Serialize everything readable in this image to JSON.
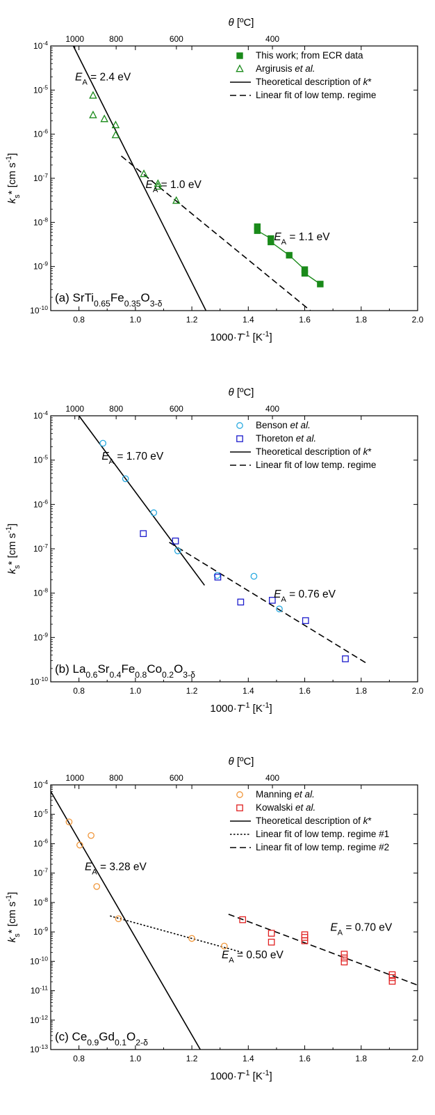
{
  "chart_data": [
    {
      "type": "scatter",
      "panel_label": "(a)",
      "material": {
        "parts": [
          [
            "SrTi",
            ""
          ],
          [
            "0.65",
            "sub"
          ],
          [
            "Fe",
            ""
          ],
          [
            "0.35",
            "sub"
          ],
          [
            "O",
            ""
          ],
          [
            "3-δ",
            "sub"
          ]
        ]
      },
      "xlabel_bottom": "1000·T⁻¹ [K⁻¹]",
      "xlabel_top": "θ [ºC]",
      "ylabel": "ks* [cm s⁻¹]",
      "xlim": [
        0.7,
        2.0
      ],
      "ylim_log10": [
        -10,
        -4
      ],
      "xticks": [
        0.8,
        1.0,
        1.2,
        1.4,
        1.6,
        1.8,
        2.0
      ],
      "xtick_labels": [
        "0.8",
        "1.0",
        "1.2",
        "1.4",
        "1.6",
        "1.8",
        "2.0"
      ],
      "top_ticks": [
        {
          "celsius": 1000,
          "label": "1000"
        },
        {
          "celsius": 800,
          "label": "800"
        },
        {
          "celsius": 600,
          "label": "600"
        },
        {
          "celsius": 400,
          "label": "400"
        }
      ],
      "legend_position": "top-right",
      "series": [
        {
          "name": "This work; from ECR data",
          "marker": "filled-square",
          "color": "#1a8a1a",
          "connect": true,
          "x": [
            1.432,
            1.432,
            1.48,
            1.48,
            1.545,
            1.6,
            1.6,
            1.655
          ],
          "y": [
            8e-09,
            6.5e-09,
            4.3e-09,
            3.6e-09,
            1.8e-09,
            8.5e-10,
            7e-10,
            4e-10
          ]
        },
        {
          "name": "Argirusis et al.",
          "name_parts": [
            [
              "Argirusis ",
              ""
            ],
            [
              "et al.",
              "i"
            ]
          ],
          "marker": "open-triangle",
          "color": "#1a8a1a",
          "x": [
            0.85,
            0.85,
            0.89,
            0.93,
            0.93,
            1.03,
            1.08,
            1.08,
            1.145
          ],
          "y": [
            7.5e-06,
            2.7e-06,
            2.2e-06,
            1.6e-06,
            9.5e-07,
            1.25e-07,
            7.5e-08,
            6.5e-08,
            3.1e-08
          ]
        }
      ],
      "lines": [
        {
          "name": "Theoretical description of k*",
          "style": "solid",
          "points": [
            [
              0.78,
              0.0001
            ],
            [
              1.25,
              1e-10
            ]
          ]
        },
        {
          "name": "Linear fit of low temp. regime",
          "style": "dashed",
          "points": [
            [
              0.95,
              3.2e-07
            ],
            [
              1.62,
              1e-10
            ]
          ]
        }
      ],
      "annotations": [
        {
          "text": "= 2.4 eV",
          "label": "E",
          "sub": "A",
          "x": 0.885,
          "y": 1.65e-05
        },
        {
          "text": "= 1.0 eV",
          "label": "E",
          "sub": "A",
          "x": 1.135,
          "y": 6e-08
        },
        {
          "text": "= 1.1 eV",
          "label": "E",
          "sub": "A",
          "x": 1.59,
          "y": 3.9e-09
        }
      ]
    },
    {
      "type": "scatter",
      "panel_label": "(b)",
      "material": {
        "parts": [
          [
            "La",
            ""
          ],
          [
            "0.6",
            "sub"
          ],
          [
            "Sr",
            ""
          ],
          [
            "0.4",
            "sub"
          ],
          [
            "Fe",
            ""
          ],
          [
            "0.8",
            "sub"
          ],
          [
            "Co",
            ""
          ],
          [
            "0.2",
            "sub"
          ],
          [
            "O",
            ""
          ],
          [
            "3-δ",
            "sub"
          ]
        ]
      },
      "xlabel_bottom": "1000·T⁻¹ [K⁻¹]",
      "xlabel_top": "θ [ºC]",
      "ylabel": "ks* [cm s⁻¹]",
      "xlim": [
        0.7,
        2.0
      ],
      "ylim_log10": [
        -10,
        -4
      ],
      "xticks": [
        0.8,
        1.0,
        1.2,
        1.4,
        1.6,
        1.8,
        2.0
      ],
      "xtick_labels": [
        "0.8",
        "1.0",
        "1.2",
        "1.4",
        "1.6",
        "1.8",
        "2.0"
      ],
      "top_ticks": [
        {
          "celsius": 1000,
          "label": "1000"
        },
        {
          "celsius": 800,
          "label": "800"
        },
        {
          "celsius": 600,
          "label": "600"
        },
        {
          "celsius": 400,
          "label": "400"
        }
      ],
      "legend_position": "top-right",
      "series": [
        {
          "name": "Benson et al.",
          "name_parts": [
            [
              "Benson ",
              ""
            ],
            [
              "et al.",
              "i"
            ]
          ],
          "marker": "open-circle",
          "color": "#2aaae0",
          "x": [
            0.885,
            0.965,
            1.065,
            1.15,
            1.29,
            1.42,
            1.51
          ],
          "y": [
            2.4e-05,
            3.8e-06,
            6.5e-07,
            9e-08,
            2.5e-08,
            2.4e-08,
            4.4e-09
          ]
        },
        {
          "name": "Thoreton et al.",
          "name_parts": [
            [
              "Thoreton ",
              ""
            ],
            [
              "et al.",
              "i"
            ]
          ],
          "marker": "open-square",
          "color": "#1c1ccc",
          "x": [
            1.028,
            1.142,
            1.292,
            1.373,
            1.485,
            1.603,
            1.744
          ],
          "y": [
            2.2e-07,
            1.5e-07,
            2.3e-08,
            6.3e-09,
            6.9e-09,
            2.4e-09,
            3.3e-10
          ]
        }
      ],
      "lines": [
        {
          "name": "Theoretical description of k*",
          "style": "solid",
          "points": [
            [
              0.8,
              0.0001
            ],
            [
              1.245,
              1.5e-08
            ]
          ]
        },
        {
          "name": "Linear fit of low temp. regime",
          "style": "dashed",
          "points": [
            [
              1.12,
              1.4e-07
            ],
            [
              1.82,
              2.6e-10
            ]
          ]
        }
      ],
      "annotations": [
        {
          "text": "= 1.70 eV",
          "label": "E",
          "sub": "A",
          "x": 0.99,
          "y": 1.02e-05
        },
        {
          "text": "= 0.76 eV",
          "label": "E",
          "sub": "A",
          "x": 1.6,
          "y": 7.9e-09
        }
      ]
    },
    {
      "type": "scatter",
      "panel_label": "(c)",
      "material": {
        "parts": [
          [
            "Ce",
            ""
          ],
          [
            "0.9",
            "sub"
          ],
          [
            "Gd",
            ""
          ],
          [
            "0.1",
            "sub"
          ],
          [
            "O",
            ""
          ],
          [
            "2-δ",
            "sub"
          ]
        ]
      },
      "xlabel_bottom": "1000·T⁻¹ [K⁻¹]",
      "xlabel_top": "θ [ºC]",
      "ylabel": "ks* [cm s⁻¹]",
      "xlim": [
        0.7,
        2.0
      ],
      "ylim_log10": [
        -13,
        -4
      ],
      "xticks": [
        0.8,
        1.0,
        1.2,
        1.4,
        1.6,
        1.8,
        2.0
      ],
      "xtick_labels": [
        "0.8",
        "1.0",
        "1.2",
        "1.4",
        "1.6",
        "1.8",
        "2.0"
      ],
      "top_ticks": [
        {
          "celsius": 1000,
          "label": "1000"
        },
        {
          "celsius": 800,
          "label": "800"
        },
        {
          "celsius": 600,
          "label": "600"
        },
        {
          "celsius": 400,
          "label": "400"
        }
      ],
      "legend_position": "top-right",
      "series": [
        {
          "name": "Manning et al.",
          "name_parts": [
            [
              "Manning ",
              ""
            ],
            [
              "et al.",
              "i"
            ]
          ],
          "marker": "open-circle",
          "color": "#f0963a",
          "x": [
            0.765,
            0.803,
            0.843,
            0.863,
            0.94,
            1.2,
            1.315
          ],
          "y": [
            5.5e-06,
            9e-07,
            1.9e-06,
            3.5e-08,
            2.8e-09,
            6e-10,
            3.3e-10
          ]
        },
        {
          "name": "Kowalski et al.",
          "name_parts": [
            [
              "Kowalski ",
              ""
            ],
            [
              "et al.",
              "i"
            ]
          ],
          "marker": "open-square",
          "color": "#e02020",
          "x": [
            1.38,
            1.482,
            1.482,
            1.6,
            1.6,
            1.6,
            1.74,
            1.74,
            1.74,
            1.91,
            1.91,
            1.91
          ],
          "y": [
            2.6e-09,
            9e-10,
            4.5e-10,
            8e-10,
            6.5e-10,
            5e-10,
            1.75e-10,
            1.3e-10,
            9.5e-11,
            3.5e-11,
            2.8e-11,
            2.1e-11
          ]
        }
      ],
      "lines": [
        {
          "name": "Theoretical description of k*",
          "style": "solid",
          "points": [
            [
              0.7,
              6e-05
            ],
            [
              1.23,
              1e-13
            ]
          ]
        },
        {
          "name": "Linear fit of low temp. regime #1",
          "style": "dotted",
          "points": [
            [
              0.91,
              3.5e-09
            ],
            [
              1.38,
              2e-10
            ]
          ]
        },
        {
          "name": "Linear fit of low temp. regime #2",
          "style": "dashed",
          "points": [
            [
              1.33,
              4e-09
            ],
            [
              2.0,
              1.55e-11
            ]
          ]
        }
      ],
      "annotations": [
        {
          "text": "= 3.28 eV",
          "label": "E",
          "sub": "A",
          "x": 0.93,
          "y": 1.25e-07
        },
        {
          "text": "= 0.50 eV",
          "label": "E",
          "sub": "A",
          "x": 1.415,
          "y": 1.25e-10
        },
        {
          "text": "= 0.70 eV",
          "label": "E",
          "sub": "A",
          "x": 1.8,
          "y": 1.1e-09
        }
      ]
    }
  ]
}
